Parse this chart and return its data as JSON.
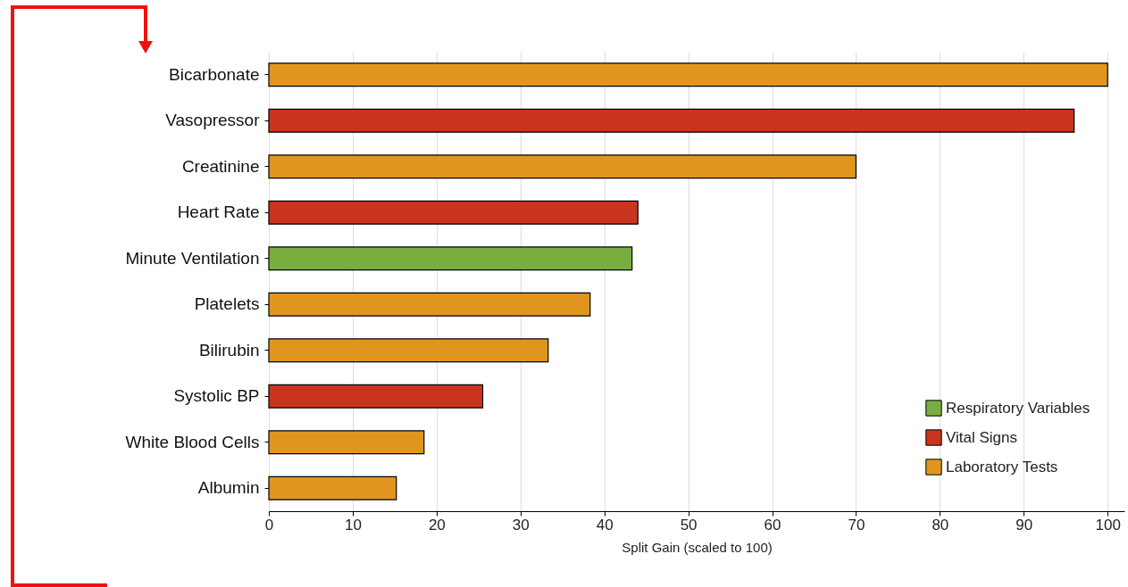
{
  "chart_data": {
    "type": "bar",
    "orientation": "horizontal",
    "xlabel": "Split Gain (scaled to 100)",
    "categories": [
      "Bicarbonate",
      "Vasopressor",
      "Creatinine",
      "Heart Rate",
      "Minute Ventilation",
      "Platelets",
      "Bilirubin",
      "Systolic BP",
      "White Blood Cells",
      "Albumin"
    ],
    "series": [
      {
        "name": "Respiratory Variables",
        "color": "#7aad3f",
        "values": [
          null,
          null,
          null,
          null,
          43.3,
          null,
          null,
          null,
          null,
          null
        ]
      },
      {
        "name": "Vital Signs",
        "color": "#c9351c",
        "values": [
          null,
          96,
          null,
          44,
          null,
          null,
          null,
          25.5,
          null,
          null
        ]
      },
      {
        "name": "Laboratory Tests",
        "color": "#e0961e",
        "values": [
          100,
          null,
          70,
          null,
          null,
          38.3,
          33.3,
          null,
          18.5,
          15.2
        ]
      }
    ],
    "xlim": [
      0,
      102
    ],
    "xticks": [
      0,
      10,
      20,
      30,
      40,
      50,
      60,
      70,
      80,
      90,
      100
    ],
    "grid": "x",
    "legend": "bottom right"
  }
}
